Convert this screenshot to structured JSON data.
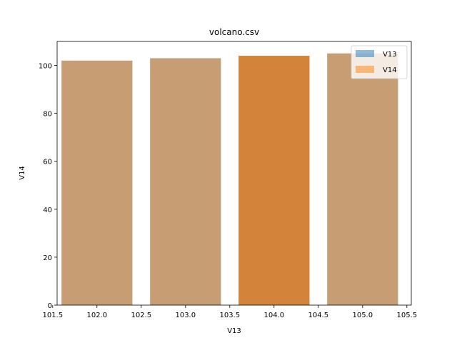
{
  "chart_data": {
    "type": "bar",
    "title": "volcano.csv",
    "xlabel": "V13",
    "ylabel": "V14",
    "xlim": [
      101.55,
      105.55
    ],
    "ylim": [
      0,
      110
    ],
    "x_ticks": [
      "101.5",
      "102.0",
      "102.5",
      "103.0",
      "103.5",
      "104.0",
      "104.5",
      "105.0",
      "105.5"
    ],
    "y_ticks": [
      "0",
      "20",
      "40",
      "60",
      "80",
      "100"
    ],
    "bar_width": 0.8,
    "grid": false,
    "legend_position": "top-right",
    "series": [
      {
        "name": "V13",
        "color": "#1f77b4",
        "alpha": 0.5,
        "x": [
          102,
          103,
          104,
          105
        ],
        "values": [
          102,
          103,
          104,
          105
        ]
      },
      {
        "name": "V14",
        "color": "#ff7f0e",
        "alpha": 0.5,
        "x": [
          102,
          103,
          104,
          105
        ],
        "values": [
          102,
          103,
          104,
          105
        ]
      }
    ],
    "overlap_highlight": {
      "x": 104,
      "note_color": "#d4843a"
    }
  }
}
